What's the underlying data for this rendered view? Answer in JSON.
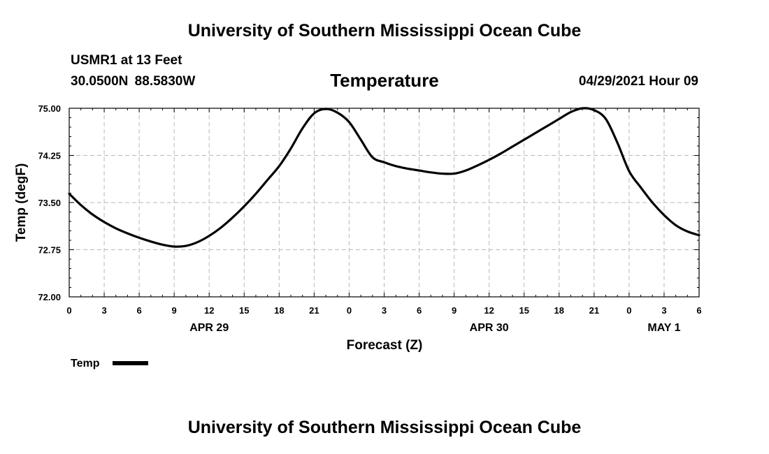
{
  "header": {
    "title": "University of Southern Mississippi Ocean Cube",
    "station": "USMR1 at 13 Feet",
    "coords": "30.0500N  88.5830W",
    "timestamp": "04/29/2021 Hour 09"
  },
  "footer": {
    "title": "University of Southern Mississippi Ocean Cube"
  },
  "colors": {
    "line": "#000000",
    "grid": "#b8b8b8"
  },
  "chart_data": {
    "type": "line",
    "title": "Temperature",
    "xlabel": "Forecast (Z)",
    "ylabel": "Temp (degF)",
    "ylim": [
      72.0,
      75.0
    ],
    "xlim": [
      0,
      54
    ],
    "x_unit": "hours from APR 29 00Z",
    "y_ticks": [
      72.0,
      72.75,
      73.5,
      74.25,
      75.0
    ],
    "y_tick_labels": [
      "72.00",
      "72.75",
      "73.50",
      "74.25",
      "75.00"
    ],
    "x_ticks": [
      0,
      3,
      6,
      9,
      12,
      15,
      18,
      21,
      24,
      27,
      30,
      33,
      36,
      39,
      42,
      45,
      48,
      51,
      54
    ],
    "x_tick_labels": [
      "0",
      "3",
      "6",
      "9",
      "12",
      "15",
      "18",
      "21",
      "0",
      "3",
      "6",
      "9",
      "12",
      "15",
      "18",
      "21",
      "0",
      "3",
      "6"
    ],
    "date_labels": [
      {
        "x": 12,
        "label": "APR 29"
      },
      {
        "x": 36,
        "label": "APR 30"
      },
      {
        "x": 51,
        "label": "MAY 1"
      }
    ],
    "grid": true,
    "legend": {
      "position": "bottom-left",
      "label": "Temp"
    },
    "series": [
      {
        "name": "Temp",
        "x": [
          0,
          1,
          2,
          3,
          4,
          5,
          6,
          7,
          8,
          9,
          10,
          11,
          12,
          13,
          14,
          15,
          16,
          17,
          18,
          19,
          20,
          21,
          22,
          23,
          24,
          25,
          26,
          27,
          28,
          29,
          30,
          31,
          32,
          33,
          34,
          35,
          36,
          37,
          38,
          39,
          40,
          41,
          42,
          43,
          44,
          45,
          46,
          47,
          48,
          49,
          50,
          51,
          52,
          53,
          54
        ],
        "values": [
          73.64,
          73.46,
          73.31,
          73.19,
          73.09,
          73.01,
          72.94,
          72.88,
          72.83,
          72.8,
          72.81,
          72.87,
          72.97,
          73.1,
          73.26,
          73.44,
          73.64,
          73.86,
          74.08,
          74.36,
          74.68,
          74.92,
          74.99,
          74.93,
          74.78,
          74.5,
          74.22,
          74.14,
          74.08,
          74.04,
          74.01,
          73.98,
          73.96,
          73.96,
          74.01,
          74.09,
          74.18,
          74.28,
          74.39,
          74.5,
          74.61,
          74.72,
          74.83,
          74.94,
          75.0,
          74.97,
          74.83,
          74.45,
          74.0,
          73.74,
          73.5,
          73.3,
          73.14,
          73.04,
          72.98
        ]
      }
    ]
  }
}
